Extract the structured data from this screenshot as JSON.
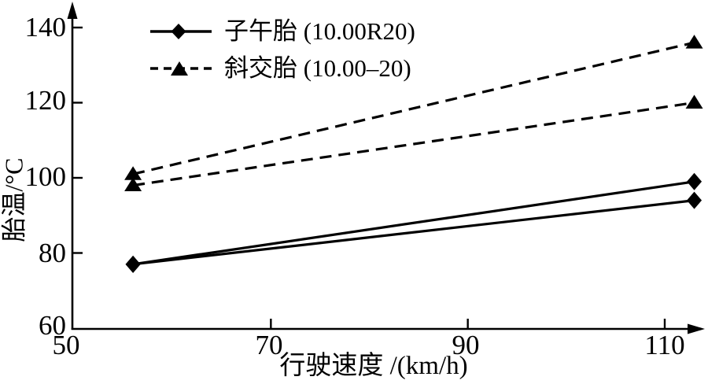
{
  "chart_data": {
    "type": "line",
    "title": "",
    "xlabel": "行驶速度 /(km/h)",
    "ylabel": "胎温/°C",
    "x_ticks": [
      50,
      70,
      90,
      110
    ],
    "y_ticks": [
      60,
      80,
      100,
      120,
      140
    ],
    "xlim": [
      50,
      114
    ],
    "ylim": [
      60,
      144
    ],
    "grid": false,
    "legend_position": "top-left-inside",
    "background_color": "#ffffff",
    "axis_color": "#000000",
    "series": [
      {
        "name": "子午胎 (10.00R20)",
        "marker": "diamond",
        "line_style": "solid",
        "color": "#000000",
        "lines": [
          {
            "x": [
              56,
              113
            ],
            "y": [
              77,
              99
            ]
          },
          {
            "x": [
              56,
              113
            ],
            "y": [
              77,
              94
            ]
          }
        ]
      },
      {
        "name": "斜交胎 (10.00–20)",
        "marker": "triangle",
        "line_style": "dashed",
        "color": "#000000",
        "lines": [
          {
            "x": [
              56,
              113
            ],
            "y": [
              101,
              136
            ]
          },
          {
            "x": [
              56,
              113
            ],
            "y": [
              98,
              120
            ]
          }
        ]
      }
    ]
  }
}
